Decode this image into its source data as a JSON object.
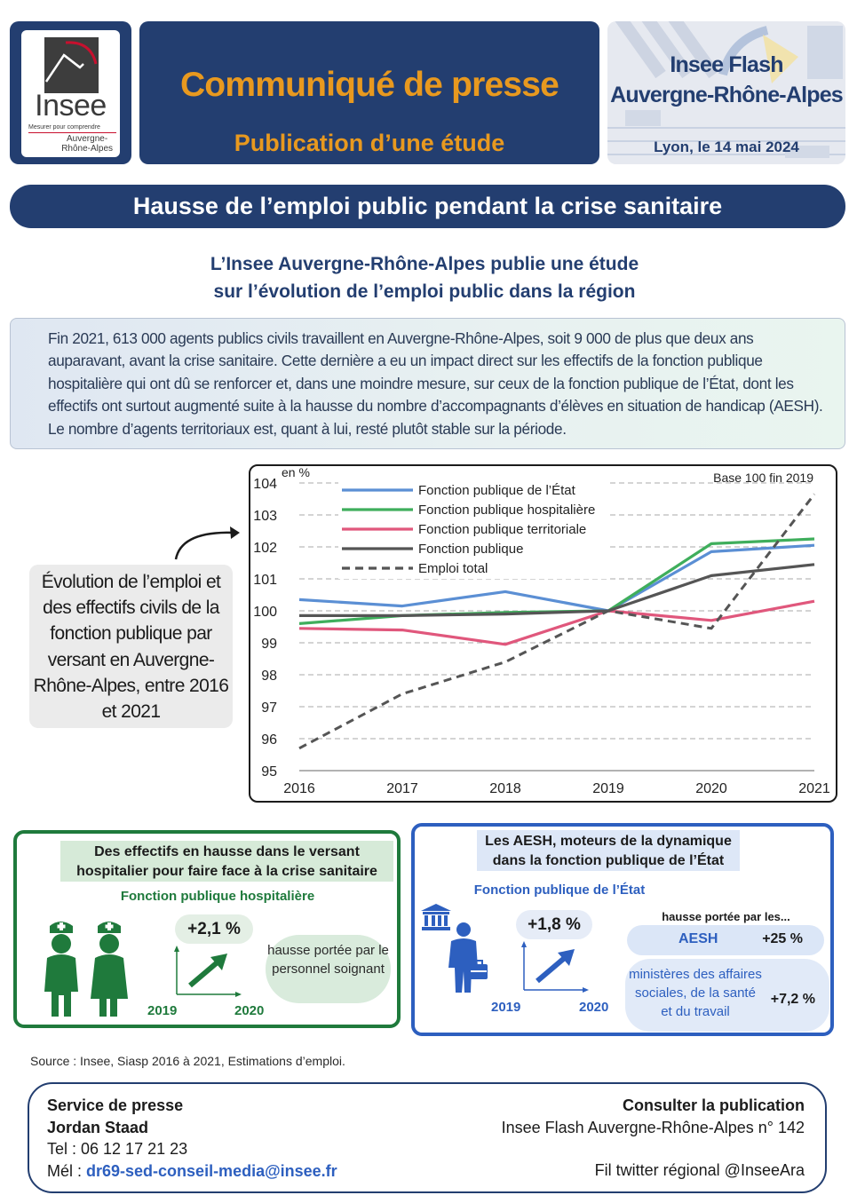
{
  "header": {
    "logo": {
      "name": "Insee",
      "tagline": "Mesurer pour comprendre",
      "region_line1": "Auvergne-",
      "region_line2": "Rhône-Alpes"
    },
    "press_title": "Communiqué de presse",
    "press_subtitle": "Publication d’une étude",
    "flash_line1": "Insee Flash",
    "flash_line2": "Auvergne-Rhône-Alpes",
    "flash_date": "Lyon, le 14 mai 2024"
  },
  "banner": "Hausse de l’emploi public pendant la crise sanitaire",
  "subtitle_line1": "L’Insee Auvergne-Rhône-Alpes publie une étude",
  "subtitle_line2": "sur l’évolution de l’emploi public dans la région",
  "intro_text": "Fin 2021, 613 000 agents publics civils travaillent en Auvergne-Rhône-Alpes, soit 9 000 de plus que deux ans auparavant, avant la crise sanitaire. Cette dernière a eu un impact direct sur les effectifs de la fonction publique hospitalière qui ont dû se renforcer et, dans une moindre mesure, sur ceux de la fonction publique de l’État, dont les effectifs ont surtout augmenté suite à la hausse du nombre d’accompagnants d’élèves en situation de handicap (AESH). Le nombre d’agents territoriaux est, quant à lui, resté plutôt stable sur la période.",
  "chart_caption": "Évolution de l’emploi et des effectifs civils de la fonction publique par versant en Auvergne-Rhône-Alpes, entre 2016 et 2021",
  "chart_data": {
    "type": "line",
    "ylabel": "en %",
    "annotation": "Base 100 fin 2019",
    "x": [
      2016,
      2017,
      2018,
      2019,
      2020,
      2021
    ],
    "ylim": [
      95,
      104
    ],
    "yticks": [
      95,
      96,
      97,
      98,
      99,
      100,
      101,
      102,
      103,
      104
    ],
    "grid": true,
    "legend_position": "top-left",
    "series": [
      {
        "name": "Fonction publique de l’État",
        "color": "#5b8fd4",
        "dash": false,
        "values": [
          100.35,
          100.15,
          100.6,
          100.0,
          101.85,
          102.05
        ]
      },
      {
        "name": "Fonction publique hospitalière",
        "color": "#3fae5c",
        "dash": false,
        "values": [
          99.6,
          99.85,
          99.95,
          100.0,
          102.1,
          102.25
        ]
      },
      {
        "name": "Fonction publique territoriale",
        "color": "#e0577c",
        "dash": false,
        "values": [
          99.45,
          99.4,
          98.95,
          100.0,
          99.7,
          100.3
        ]
      },
      {
        "name": "Fonction publique",
        "color": "#555555",
        "dash": false,
        "values": [
          99.85,
          99.85,
          99.9,
          100.0,
          101.1,
          101.45
        ]
      },
      {
        "name": "Emploi total",
        "color": "#555555",
        "dash": true,
        "values": [
          95.7,
          97.4,
          98.4,
          100.0,
          99.45,
          103.65
        ]
      }
    ]
  },
  "box_hospital": {
    "heading_line1": "Des effectifs en hausse dans le versant",
    "heading_line2": "hospitalier pour faire face à la crise sanitaire",
    "label": "Fonction publique hospitalière",
    "change": "+2,1 %",
    "year_start": "2019",
    "year_end": "2020",
    "note": "hausse portée par le personnel soignant"
  },
  "box_state": {
    "heading_line1": "Les AESH, moteurs de la dynamique",
    "heading_line2": "dans la fonction publique de l’État",
    "label": "Fonction publique de l’État",
    "change": "+1,8 %",
    "year_start": "2019",
    "year_end": "2020",
    "carried_by": "hausse portée par les...",
    "aesh_label": "AESH",
    "aesh_value": "+25 %",
    "ministries_label": "ministères des affaires sociales, de la santé et du travail",
    "ministries_value": "+7,2 %"
  },
  "source": "Source : Insee, Siasp 2016 à 2021, Estimations d’emploi.",
  "footer": {
    "press_service": "Service de presse",
    "contact_name": "Jordan Staad",
    "tel": "Tel : 06 12 17 21 23",
    "mail_label": "Mél : ",
    "mail": "dr69-sed-conseil-media@insee.fr",
    "consult": "Consulter la publication",
    "publication": "Insee Flash Auvergne-Rhône-Alpes n° 142",
    "twitter": "Fil twitter régional @InseeAra"
  },
  "colors": {
    "navy": "#233e70",
    "orange": "#e8991f",
    "green": "#1f7a3c",
    "blue": "#2d5fbf"
  }
}
